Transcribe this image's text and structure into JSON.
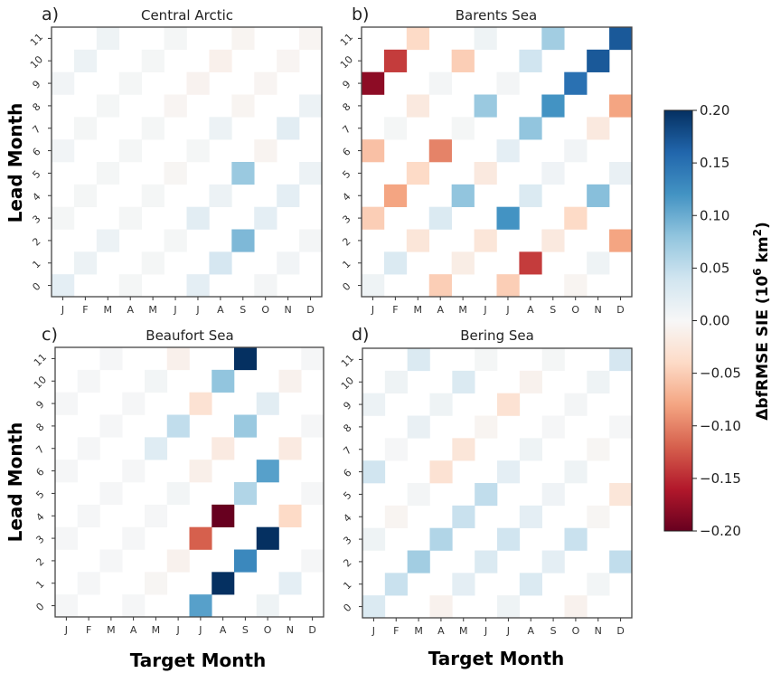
{
  "chart_data": {
    "type": "heatmap",
    "colormap": "RdBu",
    "vmin": -0.2,
    "vmax": 0.2,
    "xlabel": "Target Month",
    "ylabel": "Lead Month",
    "x_ticks": [
      "J",
      "F",
      "M",
      "A",
      "M",
      "J",
      "J",
      "A",
      "S",
      "O",
      "N",
      "D"
    ],
    "y_ticks": [
      "0",
      "1",
      "2",
      "3",
      "4",
      "5",
      "6",
      "7",
      "8",
      "9",
      "10",
      "11"
    ],
    "note": "Cells exist only where target-month index ≡ lead month (mod 3); other cells are blank. values[lead][month]; null = blank.",
    "colorbar": {
      "label": "ΔbfRMSE SIE (10⁶ km²)",
      "label_main": "ΔbfRMSE SIE (10",
      "label_sup": "6",
      "label_unit": " km",
      "label_sup2": "2",
      "label_close": ")",
      "ticks": [
        "0.20",
        "0.15",
        "0.10",
        "0.05",
        "0.00",
        "−0.05",
        "−0.10",
        "−0.15",
        "−0.20"
      ],
      "tick_values": [
        0.2,
        0.15,
        0.1,
        0.05,
        0.0,
        -0.05,
        -0.1,
        -0.15,
        -0.2
      ]
    },
    "panels": [
      {
        "letter": "a)",
        "title": "Central Arctic",
        "values": [
          [
            0.02,
            null,
            null,
            0.003,
            null,
            null,
            0.02,
            null,
            null,
            0.004,
            null,
            null
          ],
          [
            null,
            0.012,
            null,
            null,
            0.003,
            null,
            null,
            0.035,
            null,
            null,
            0.006,
            null
          ],
          [
            null,
            null,
            0.012,
            null,
            null,
            0.003,
            null,
            null,
            0.09,
            null,
            null,
            0.004
          ],
          [
            0.003,
            null,
            null,
            0.003,
            null,
            null,
            0.022,
            null,
            null,
            0.02,
            null,
            null
          ],
          [
            null,
            0.003,
            null,
            null,
            0.003,
            null,
            null,
            0.012,
            null,
            null,
            0.02,
            null
          ],
          [
            null,
            null,
            0.003,
            null,
            null,
            -0.003,
            null,
            null,
            0.075,
            null,
            null,
            0.012
          ],
          [
            0.006,
            null,
            null,
            0.003,
            null,
            null,
            0.003,
            null,
            null,
            -0.006,
            null,
            null
          ],
          [
            null,
            0.003,
            null,
            null,
            0.003,
            null,
            null,
            0.012,
            null,
            null,
            0.022,
            null
          ],
          [
            null,
            null,
            0.003,
            null,
            null,
            -0.004,
            null,
            null,
            -0.005,
            null,
            null,
            0.012
          ],
          [
            0.006,
            null,
            null,
            0.003,
            null,
            null,
            -0.007,
            null,
            null,
            -0.004,
            null,
            null
          ],
          [
            null,
            0.012,
            null,
            null,
            0.003,
            null,
            null,
            -0.01,
            null,
            null,
            -0.004,
            null
          ],
          [
            null,
            null,
            0.01,
            null,
            null,
            0.003,
            null,
            null,
            -0.005,
            null,
            null,
            -0.004
          ]
        ]
      },
      {
        "letter": "b)",
        "title": "Barents Sea",
        "values": [
          [
            0.01,
            null,
            null,
            -0.05,
            null,
            null,
            -0.05,
            null,
            null,
            -0.005,
            null,
            null
          ],
          [
            null,
            0.03,
            null,
            null,
            -0.015,
            null,
            null,
            -0.14,
            null,
            null,
            0.01,
            null
          ],
          [
            null,
            null,
            -0.025,
            null,
            null,
            -0.025,
            null,
            null,
            -0.02,
            null,
            null,
            -0.08
          ],
          [
            -0.05,
            null,
            null,
            0.03,
            null,
            null,
            0.12,
            null,
            null,
            -0.04,
            null,
            null
          ],
          [
            null,
            -0.08,
            null,
            null,
            0.08,
            null,
            null,
            0.03,
            null,
            null,
            0.085,
            null
          ],
          [
            null,
            null,
            -0.04,
            null,
            null,
            -0.02,
            null,
            null,
            0.008,
            null,
            null,
            0.015
          ],
          [
            -0.06,
            null,
            null,
            -0.1,
            null,
            null,
            0.02,
            null,
            null,
            0.006,
            null,
            null
          ],
          [
            null,
            0.003,
            null,
            null,
            0.003,
            null,
            null,
            0.08,
            null,
            null,
            -0.02,
            null
          ],
          [
            null,
            null,
            -0.02,
            null,
            null,
            0.075,
            null,
            null,
            0.12,
            null,
            null,
            -0.08
          ],
          [
            -0.18,
            null,
            null,
            0.004,
            null,
            null,
            0.004,
            null,
            null,
            0.15,
            null,
            null
          ],
          [
            null,
            -0.14,
            null,
            null,
            -0.05,
            null,
            null,
            0.04,
            null,
            null,
            0.17,
            null
          ],
          [
            null,
            null,
            -0.04,
            null,
            null,
            0.01,
            null,
            null,
            0.07,
            null,
            null,
            0.17
          ]
        ]
      },
      {
        "letter": "c)",
        "title": "Beaufort Sea",
        "values": [
          [
            0.002,
            null,
            null,
            0.002,
            null,
            null,
            0.11,
            null,
            null,
            0.01,
            null,
            null
          ],
          [
            null,
            0.002,
            null,
            null,
            -0.003,
            null,
            null,
            0.2,
            null,
            null,
            0.02,
            null
          ],
          [
            null,
            null,
            0.002,
            null,
            null,
            -0.008,
            null,
            null,
            0.13,
            null,
            null,
            0.002
          ],
          [
            0.002,
            null,
            null,
            0.002,
            null,
            null,
            -0.12,
            null,
            null,
            0.2,
            null,
            null
          ],
          [
            null,
            0.002,
            null,
            null,
            0.002,
            null,
            null,
            -0.2,
            null,
            null,
            -0.04,
            null
          ],
          [
            null,
            null,
            0.002,
            null,
            null,
            0.005,
            null,
            null,
            0.06,
            null,
            null,
            0.002
          ],
          [
            0.002,
            null,
            null,
            0.002,
            null,
            null,
            -0.012,
            null,
            null,
            0.11,
            null,
            null
          ],
          [
            null,
            0.002,
            null,
            null,
            0.025,
            null,
            null,
            -0.018,
            null,
            null,
            -0.018,
            null
          ],
          [
            null,
            null,
            0.002,
            null,
            null,
            0.05,
            null,
            null,
            0.075,
            null,
            null,
            0.002
          ],
          [
            0.002,
            null,
            null,
            0.002,
            null,
            null,
            -0.03,
            null,
            null,
            0.022,
            null,
            null
          ],
          [
            null,
            0.002,
            null,
            null,
            0.005,
            null,
            null,
            0.08,
            null,
            null,
            -0.008,
            null
          ],
          [
            null,
            null,
            0.002,
            null,
            null,
            -0.01,
            null,
            null,
            0.2,
            null,
            null,
            0.002
          ]
        ]
      },
      {
        "letter": "d)",
        "title": "Bering Sea",
        "values": [
          [
            0.03,
            null,
            null,
            -0.008,
            null,
            null,
            0.01,
            null,
            null,
            -0.008,
            null,
            null
          ],
          [
            null,
            0.045,
            null,
            null,
            0.02,
            null,
            null,
            0.03,
            null,
            null,
            0.005,
            null
          ],
          [
            null,
            null,
            0.07,
            null,
            null,
            0.03,
            null,
            null,
            0.02,
            null,
            null,
            0.05
          ],
          [
            0.01,
            null,
            null,
            0.06,
            null,
            null,
            0.04,
            null,
            null,
            0.045,
            null,
            null
          ],
          [
            null,
            -0.005,
            null,
            null,
            0.045,
            null,
            null,
            0.02,
            null,
            null,
            -0.003,
            null
          ],
          [
            null,
            null,
            0.004,
            null,
            null,
            0.05,
            null,
            null,
            0.008,
            null,
            null,
            -0.025
          ],
          [
            0.04,
            null,
            null,
            -0.03,
            null,
            null,
            0.02,
            null,
            null,
            0.01,
            null,
            null
          ],
          [
            null,
            0.002,
            null,
            null,
            -0.025,
            null,
            null,
            0.01,
            null,
            null,
            -0.003,
            null
          ],
          [
            null,
            null,
            0.015,
            null,
            null,
            -0.005,
            null,
            null,
            0.002,
            null,
            null,
            0.002
          ],
          [
            0.012,
            null,
            null,
            0.01,
            null,
            null,
            -0.03,
            null,
            null,
            0.004,
            null,
            null
          ],
          [
            null,
            0.01,
            null,
            null,
            0.03,
            null,
            null,
            -0.008,
            null,
            null,
            0.01,
            null
          ],
          [
            null,
            null,
            0.03,
            null,
            null,
            0.003,
            null,
            null,
            0.003,
            null,
            null,
            0.035
          ]
        ]
      }
    ]
  }
}
